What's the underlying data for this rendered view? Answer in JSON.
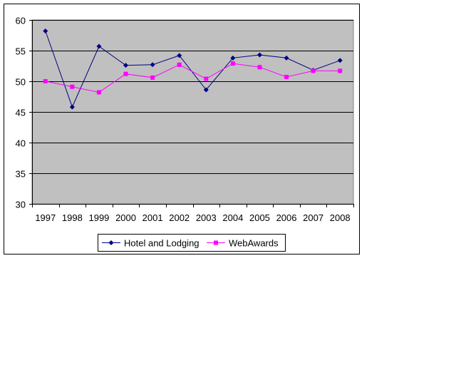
{
  "chart_data": {
    "type": "line",
    "title": "",
    "xlabel": "",
    "ylabel": "",
    "categories": [
      "1997",
      "1998",
      "1999",
      "2000",
      "2001",
      "2002",
      "2003",
      "2004",
      "2005",
      "2006",
      "2007",
      "2008"
    ],
    "ylim": [
      30,
      60
    ],
    "yticks": [
      30,
      35,
      40,
      45,
      50,
      55,
      60
    ],
    "grid": true,
    "legend_position": "bottom",
    "plot_background": "#C0C0C0",
    "series": [
      {
        "name": "Hotel and Lodging",
        "color": "#000080",
        "marker": "diamond",
        "values": [
          58.2,
          45.8,
          55.7,
          52.6,
          52.7,
          54.2,
          48.6,
          53.8,
          54.3,
          53.8,
          51.8,
          53.4
        ]
      },
      {
        "name": "WebAwards",
        "color": "#FF00FF",
        "marker": "square",
        "values": [
          50.0,
          49.1,
          48.2,
          51.2,
          50.6,
          52.7,
          50.4,
          52.9,
          52.3,
          50.7,
          51.7,
          51.7
        ]
      }
    ]
  }
}
